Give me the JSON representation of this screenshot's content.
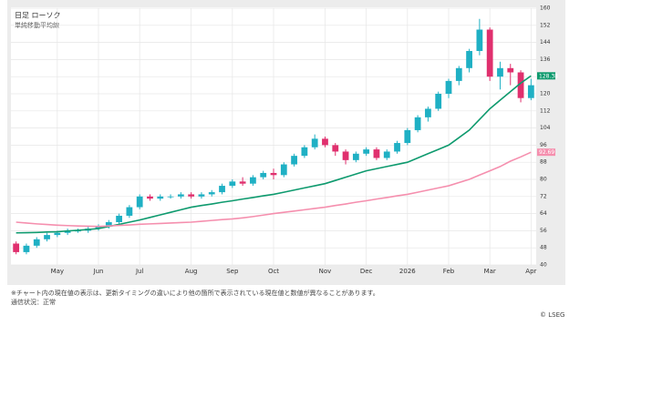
{
  "chart_data": {
    "type": "candlestick",
    "title": "日足 ローソク",
    "subtitle": "単純移動平均線",
    "categories": [
      null,
      null,
      null,
      null,
      "May",
      null,
      null,
      null,
      "Jun",
      null,
      null,
      null,
      "Jul",
      null,
      null,
      null,
      null,
      "Aug",
      null,
      null,
      null,
      "Sep",
      null,
      null,
      null,
      "Oct",
      null,
      null,
      null,
      null,
      "Nov",
      null,
      null,
      null,
      "Dec",
      null,
      null,
      null,
      "2026",
      null,
      null,
      null,
      "Feb",
      null,
      null,
      null,
      "Mar",
      null,
      null,
      null,
      "Apr"
    ],
    "open": [
      50,
      46,
      49,
      52,
      54,
      55,
      56,
      56,
      57,
      58,
      60,
      63,
      67,
      72,
      71,
      72,
      72,
      73,
      72,
      73,
      74,
      77,
      79,
      78,
      81,
      83,
      82,
      87,
      91,
      95,
      99,
      96,
      93,
      89,
      92,
      94,
      90,
      93,
      97,
      103,
      109,
      113,
      120,
      126,
      132,
      140,
      150,
      128,
      132,
      130,
      118
    ],
    "high": [
      51,
      50,
      53,
      55,
      56,
      57,
      57,
      58,
      59,
      61,
      64,
      68,
      73,
      73,
      73,
      73,
      74,
      74,
      74,
      75,
      78,
      80,
      81,
      82,
      84,
      85,
      88,
      92,
      96,
      101,
      100,
      97,
      94,
      93,
      95,
      95,
      94,
      98,
      104,
      110,
      114,
      121,
      127,
      133,
      141,
      155,
      151,
      135,
      134,
      131,
      127
    ],
    "low": [
      45,
      45,
      48,
      51,
      53,
      54,
      55,
      55,
      56,
      57,
      59,
      62,
      66,
      70,
      70,
      71,
      71,
      71,
      71,
      72,
      73,
      76,
      77,
      77,
      80,
      80,
      81,
      86,
      90,
      94,
      95,
      91,
      87,
      88,
      91,
      89,
      89,
      92,
      96,
      102,
      107,
      112,
      118,
      124,
      130,
      138,
      126,
      122,
      124,
      116,
      117
    ],
    "close": [
      46,
      49,
      52,
      54,
      55,
      56,
      56,
      57,
      58,
      60,
      63,
      67,
      72,
      71,
      72,
      72,
      73,
      72,
      73,
      74,
      77,
      79,
      78,
      81,
      83,
      82,
      87,
      91,
      95,
      99,
      96,
      93,
      89,
      92,
      94,
      90,
      93,
      97,
      103,
      109,
      113,
      120,
      126,
      132,
      140,
      150,
      128,
      132,
      130,
      118,
      124
    ],
    "up_color": "#1fb0c4",
    "down_color": "#e0306e",
    "moving_averages": [
      {
        "color": "#0e9a6e",
        "last_label": "128.38",
        "values": [
          55,
          55.1,
          55.2,
          55.4,
          55.5,
          55.9,
          56.2,
          56.6,
          57,
          58,
          59,
          60,
          61,
          62.2,
          63.4,
          64.6,
          65.8,
          67,
          67.8,
          68.5,
          69.3,
          70,
          70.8,
          71.5,
          72.3,
          73,
          74,
          75,
          76,
          77,
          78,
          79.5,
          81,
          82.5,
          84,
          85,
          86,
          87,
          88,
          90,
          92,
          94,
          96,
          99.5,
          103,
          108,
          113,
          117,
          121,
          125,
          128.38
        ]
      },
      {
        "color": "#f58fae",
        "last_label": "92.69",
        "values": [
          60,
          59.6,
          59.2,
          58.9,
          58.6,
          58.4,
          58.2,
          58.1,
          58,
          58.2,
          58.5,
          58.7,
          59,
          59.2,
          59.4,
          59.6,
          59.8,
          60,
          60.4,
          60.8,
          61.2,
          61.5,
          62,
          62.6,
          63.3,
          64,
          64.6,
          65.2,
          65.8,
          66.4,
          67,
          67.8,
          68.5,
          69.3,
          70,
          70.8,
          71.5,
          72.3,
          73,
          74,
          75,
          76,
          77,
          78.5,
          80,
          82,
          84,
          86,
          88.5,
          90.5,
          92.69
        ]
      }
    ],
    "ylim": [
      40,
      160
    ],
    "yticks": [
      40,
      48,
      56,
      64,
      72,
      80,
      88,
      96,
      104,
      112,
      120,
      128,
      136,
      144,
      152,
      160
    ],
    "grid": true,
    "footnote": "※チャート内の現在値の表示は、更新タイミングの違いにより他の箇所で表示されている現在値と数値が異なることがあります。",
    "status": "通信状況：正常",
    "credit": "© LSEG"
  }
}
